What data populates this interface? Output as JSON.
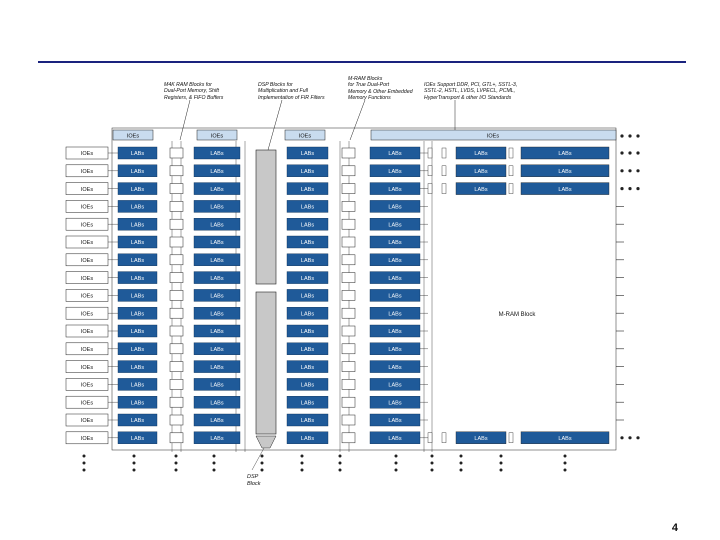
{
  "slide": {
    "page_number": "4"
  },
  "annotations": {
    "m4k": "M4K RAM Blocks for\nDual-Port Memory, Shift\nRegisters, & FIFO Buffers",
    "dsp": "DSP Blocks for\nMultiplication and Full\nImplementation of FIR Filters",
    "mram": "M-RAM Blocks\nfor True Dual-Port\nMemory & Other Embedded\nMemory Functions",
    "ioe": "IOEs Support DDR, PCI, GTL+, SSTL-3,\nSSTL-2, HSTL, LVDS, LVPECL, PCML,\nHyperTransport & other I/O Standards"
  },
  "diagram": {
    "ioe_label": "IOEs",
    "lab_label": "LABs",
    "dsp_label": "DSP\nBlock",
    "mram_label": "M-RAM Block",
    "top_ioe_labels": [
      "IOEs",
      "IOEs",
      "IOEs",
      "IOEs"
    ],
    "colors": {
      "lab_fill": "#1f5a99",
      "ioe_fill": "#c9dcef",
      "dsp_fill": "#c8c8c8",
      "line": "#222222",
      "rule": "#1a237e"
    }
  }
}
